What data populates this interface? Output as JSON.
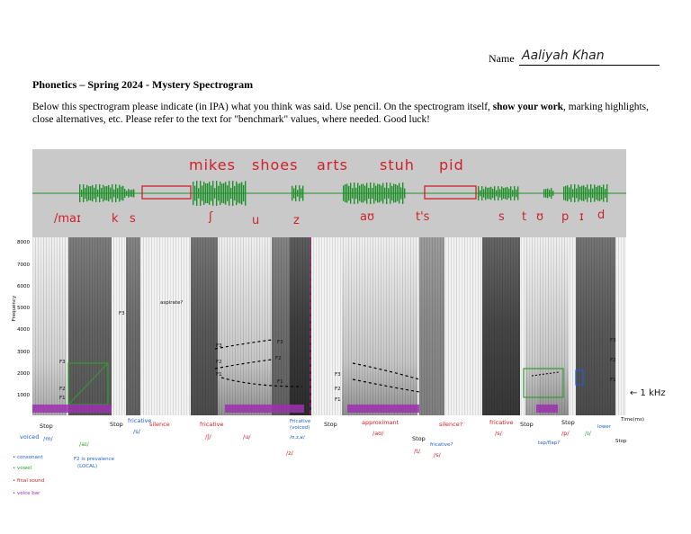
{
  "header": {
    "name_label": "Name",
    "name_value": "Aaliyah Khan",
    "title": "Phonetics – Spring 2024 - Mystery Spectrogram",
    "instructions_1": "Below this spectrogram please indicate (in IPA) what you think was said.  Use pencil.  On the spectrogram itself, ",
    "instructions_bold": "show your work",
    "instructions_2": ", marking highlights, close alternatives, etc.  Please refer to the text for \"benchmark\" values, where needed.  Good luck!"
  },
  "gloss": [
    "mikes",
    "shoes",
    "arts",
    "stuh",
    "pid"
  ],
  "segments": [
    "/maɪ",
    "k",
    "s",
    "ʃ",
    "u",
    "z",
    "aʊ",
    "t's",
    "s",
    "t",
    "ʊ",
    "p",
    "ɪ",
    "d"
  ],
  "y_axis": {
    "label": "Frequency",
    "ticks": [
      "8000",
      "7000",
      "6000",
      "5000",
      "4000",
      "3000",
      "2000",
      "1000"
    ]
  },
  "right_label": "← 1 kHz",
  "formant_labels": [
    "F3",
    "F2",
    "F1",
    "F3",
    "F2",
    "F1",
    "F3",
    "F2",
    "F1",
    "F3",
    "F2",
    "F1",
    "F3",
    "F2",
    "F1",
    "F3",
    "F2",
    "F1"
  ],
  "annotations": {
    "aspirate": "aspirate?",
    "stop1": "Stop",
    "m": "/m/",
    "voiced": "voiced",
    "ai": "/aɪ/",
    "f2_note_1": "F2 is prevalence",
    "f2_note_2": "(LOCAL)",
    "stop2": "Stop",
    "fricative1": "fricative",
    "s1": "/s/",
    "silence1": "silence",
    "fricative2": "fricative",
    "sh": "/ʃ/",
    "u": "/u/",
    "fricative_voiced": "Fricative (voiced)",
    "z": "/ʊ,z,ʁ/",
    "slash": "/z/",
    "stop3": "Stop",
    "approximant": "approximant",
    "au": "/aʊ/",
    "stop4": "Stop",
    "t": "/t/",
    "silence2": "silence?",
    "fricative3": "fricative?",
    "s2": "/s/",
    "fricative4": "fricative",
    "s3": "/s/",
    "stop5": "Stop",
    "tap": "tap/flap?",
    "stop6": "Stop",
    "p": "/p/",
    "i": "/ɪ/",
    "lower": "lower",
    "time": "Time(ms)",
    "stop7": "Stop"
  },
  "legend": {
    "consonant": "• consonant",
    "vowel": "• vowel",
    "final": "• final sound",
    "voice": "• voice bar"
  },
  "colors": {
    "red": "#d0202a",
    "blue": "#1f5fd0",
    "green": "#2e9e2e",
    "purple": "#9b30b0",
    "waveform": "#1f8f2a",
    "panel": "#c8c8c8"
  }
}
